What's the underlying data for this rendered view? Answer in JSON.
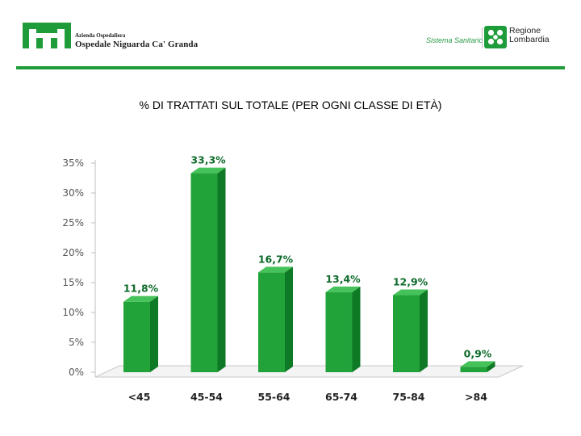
{
  "header": {
    "hospital_subtitle": "Azienda Ospedaliera",
    "hospital_name": "Ospedale Niguarda Ca' Granda",
    "sistema_label": "Sistema Sanitario",
    "region_line1": "Regione",
    "region_line2": "Lombardia"
  },
  "colors": {
    "bar_front": "#21A33A",
    "bar_side": "#0F7A25",
    "bar_top": "#46C25A",
    "header_green": "#1E9C3A",
    "label_green_text": "#0E6B2A"
  },
  "chart_data": {
    "type": "bar",
    "title": "% DI TRATTATI SUL TOTALE (PER OGNI CLASSE DI ETÀ)",
    "categories": [
      "<45",
      "45-54",
      "55-64",
      "65-74",
      "75-84",
      ">84"
    ],
    "values": [
      11.8,
      33.3,
      16.7,
      13.4,
      12.9,
      0.9
    ],
    "value_labels": [
      "11,8%",
      "33,3%",
      "16,7%",
      "13,4%",
      "12,9%",
      "0,9%"
    ],
    "ylim": [
      0,
      35
    ],
    "yticks": [
      0,
      5,
      10,
      15,
      20,
      25,
      30,
      35
    ],
    "ytick_labels": [
      "0%",
      "5%",
      "10%",
      "15%",
      "20%",
      "25%",
      "30%",
      "35%"
    ],
    "xlabel": "",
    "ylabel": "",
    "grid": false,
    "legend": "none"
  }
}
